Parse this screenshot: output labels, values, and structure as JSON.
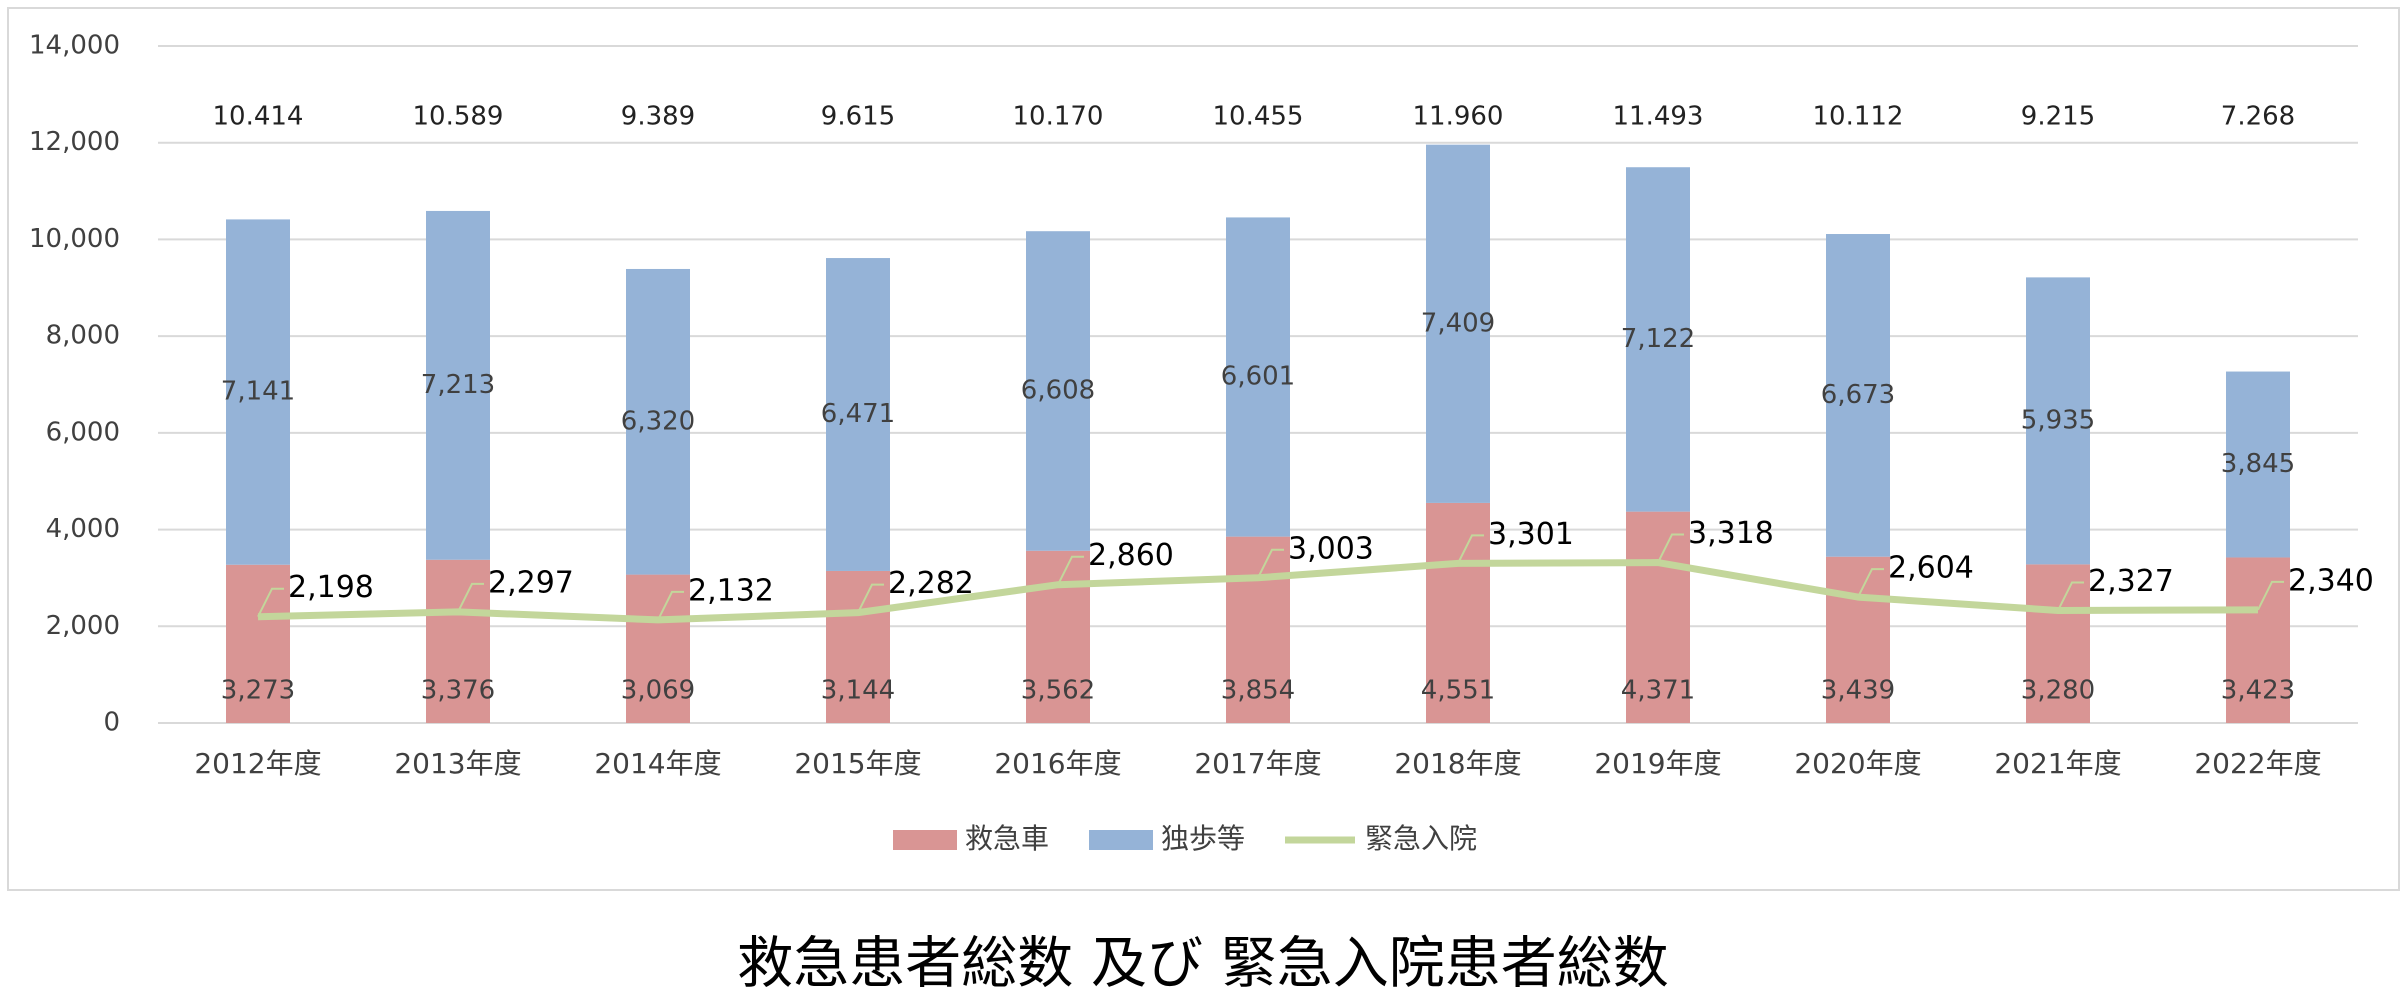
{
  "chart_data": {
    "type": "bar",
    "stacked": true,
    "title": "救急患者総数 及び 緊急入院患者総数",
    "categories": [
      "2012年度",
      "2013年度",
      "2014年度",
      "2015年度",
      "2016年度",
      "2017年度",
      "2018年度",
      "2019年度",
      "2020年度",
      "2021年度",
      "2022年度"
    ],
    "series": [
      {
        "name": "救急車",
        "color": "#d99594",
        "values": [
          3273,
          3376,
          3069,
          3144,
          3562,
          3854,
          4551,
          4371,
          3439,
          3280,
          3423
        ],
        "value_labels": [
          "3,273",
          "3,376",
          "3,069",
          "3,144",
          "3,562",
          "3,854",
          "4,551",
          "4,371",
          "3,439",
          "3,280",
          "3,423"
        ]
      },
      {
        "name": "独歩等",
        "color": "#95b3d7",
        "values": [
          7141,
          7213,
          6320,
          6471,
          6608,
          6601,
          7409,
          7122,
          6673,
          5935,
          3845
        ],
        "value_labels": [
          "7,141",
          "7,213",
          "6,320",
          "6,471",
          "6,608",
          "6,601",
          "7,409",
          "7,122",
          "6,673",
          "5,935",
          "3,845"
        ]
      },
      {
        "name": "緊急入院",
        "type": "line",
        "color": "#c3d69b",
        "values": [
          2198,
          2297,
          2132,
          2282,
          2860,
          3003,
          3301,
          3318,
          2604,
          2327,
          2340
        ],
        "value_labels": [
          "2,198",
          "2,297",
          "2,132",
          "2,282",
          "2,860",
          "3,003",
          "3,301",
          "3,318",
          "2,604",
          "2,327",
          "2,340"
        ]
      }
    ],
    "totals": {
      "values": [
        10414,
        10589,
        9389,
        9615,
        10170,
        10455,
        11960,
        11493,
        10112,
        9215,
        7268
      ],
      "value_labels": [
        "10.414",
        "10.589",
        "9.389",
        "9.615",
        "10.170",
        "10.455",
        "11.960",
        "11.493",
        "10.112",
        "9.215",
        "7.268"
      ]
    },
    "ylim": [
      0,
      14000
    ],
    "yticks": [
      0,
      {
        "value": 2000,
        "label": "2,000"
      },
      {
        "value": 4000,
        "label": "4,000"
      },
      {
        "value": 6000,
        "label": "6,000"
      },
      {
        "value": 8000,
        "label": "8,000"
      },
      {
        "value": 10000,
        "label": "10,000"
      },
      {
        "value": 12000,
        "label": "12,000"
      },
      {
        "value": 14000,
        "label": "14,000"
      }
    ],
    "grid": true,
    "legend": "bottom"
  }
}
